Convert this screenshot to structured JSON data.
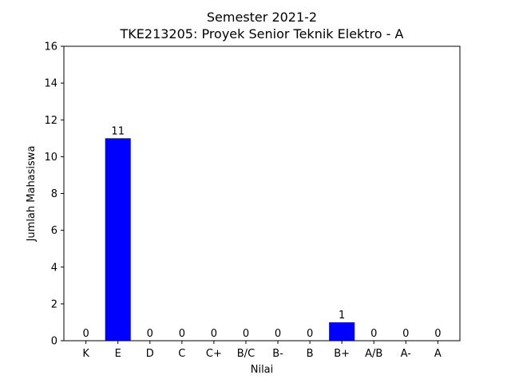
{
  "chart_data": {
    "type": "bar",
    "title": "Semester 2021-2",
    "subtitle": "TKE213205: Proyek Senior Teknik Elektro - A",
    "xlabel": "Nilai",
    "ylabel": "Jumlah Mahasiswa",
    "categories": [
      "K",
      "E",
      "D",
      "C",
      "C+",
      "B/C",
      "B-",
      "B",
      "B+",
      "A/B",
      "A-",
      "A"
    ],
    "values": [
      0,
      11,
      0,
      0,
      0,
      0,
      0,
      0,
      1,
      0,
      0,
      0
    ],
    "data_labels": [
      "0",
      "11",
      "0",
      "0",
      "0",
      "0",
      "0",
      "0",
      "1",
      "0",
      "0",
      "0"
    ],
    "ylim": [
      0,
      16
    ],
    "yticks": [
      0,
      2,
      4,
      6,
      8,
      10,
      12,
      14,
      16
    ],
    "bar_color": "#0000ff",
    "grid": false,
    "legend": "none"
  }
}
